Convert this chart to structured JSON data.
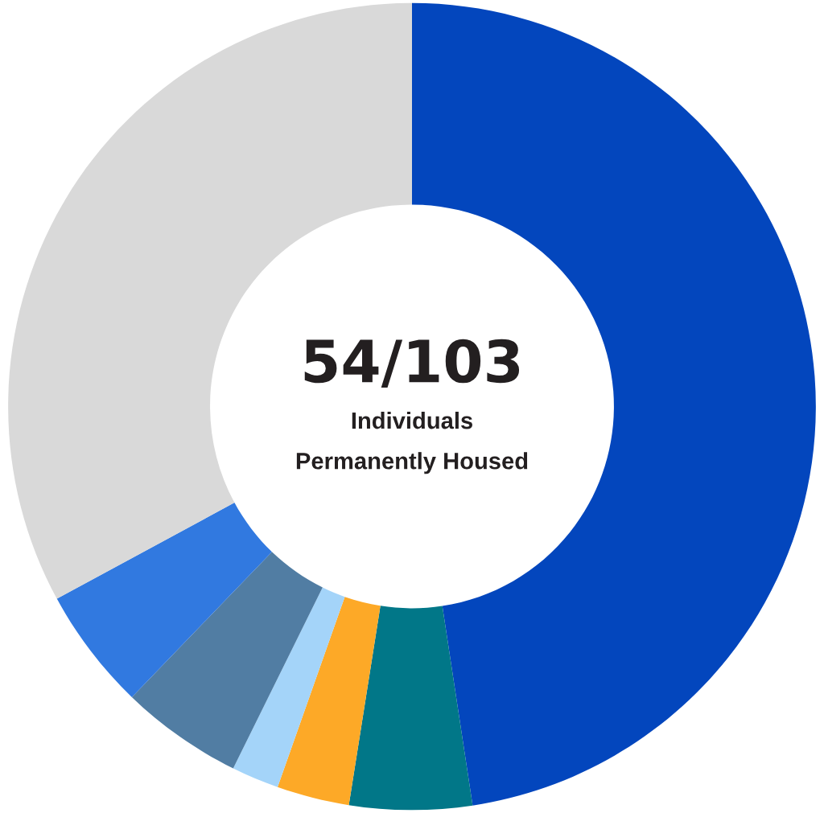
{
  "chart_data": {
    "type": "donut",
    "categories": [
      null,
      null,
      null,
      null,
      null,
      null,
      null
    ],
    "values": [
      47.6,
      4.9,
      2.9,
      1.9,
      4.9,
      4.9,
      32.9
    ],
    "colors": [
      "#0346bd",
      "#017788",
      "#fda927",
      "#a4d4f9",
      "#517da3",
      "#3179e0",
      "#d9d9d9"
    ],
    "annotations": [
      "54/103",
      "Individuals",
      "Permanently Housed"
    ]
  }
}
